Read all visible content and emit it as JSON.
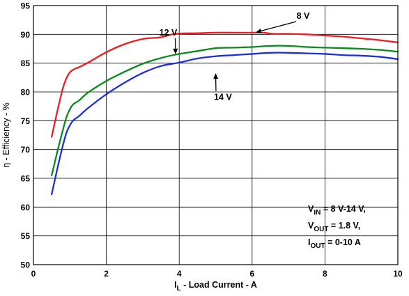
{
  "chart_data": {
    "type": "line",
    "xlabel_main": "I",
    "xlabel_sub": "L",
    "xlabel_rest": " - Load Current - A",
    "ylabel": "η - Efficiency - %",
    "xlim": [
      0,
      10
    ],
    "ylim": [
      50,
      95
    ],
    "xticks": [
      "0",
      "2",
      "4",
      "6",
      "8",
      "10"
    ],
    "yticks": [
      "50",
      "55",
      "60",
      "65",
      "70",
      "75",
      "80",
      "85",
      "90",
      "95"
    ],
    "grid": true,
    "series": [
      {
        "name": "8 V",
        "color": "#ee1c25",
        "x": [
          0.5,
          0.65,
          0.8,
          0.9,
          1.0,
          1.1,
          1.25,
          1.5,
          2.0,
          2.5,
          3.0,
          3.5,
          3.9,
          4.5,
          5.0,
          5.5,
          6.0,
          6.3,
          6.6,
          7.0,
          7.5,
          8.0,
          8.5,
          9.0,
          9.5,
          10.0
        ],
        "y": [
          72.2,
          76.5,
          80.5,
          82.3,
          83.4,
          83.9,
          84.3,
          85.1,
          86.9,
          88.3,
          89.2,
          89.5,
          90.1,
          90.2,
          90.3,
          90.3,
          90.3,
          90.3,
          90.1,
          90.1,
          90.0,
          89.8,
          89.6,
          89.3,
          89.0,
          88.6
        ]
      },
      {
        "name": "12 V",
        "color": "#0a8a1c",
        "x": [
          0.5,
          0.65,
          0.8,
          0.9,
          1.0,
          1.1,
          1.25,
          1.5,
          2.0,
          2.5,
          3.0,
          3.5,
          4.0,
          4.5,
          5.0,
          5.5,
          6.0,
          6.5,
          7.0,
          7.5,
          8.0,
          8.5,
          9.0,
          9.5,
          10.0
        ],
        "y": [
          65.5,
          69.5,
          73.2,
          75.5,
          77.0,
          77.9,
          78.5,
          79.9,
          81.9,
          83.5,
          84.9,
          85.9,
          86.6,
          87.1,
          87.6,
          87.7,
          87.8,
          88.0,
          88.0,
          87.8,
          87.7,
          87.6,
          87.5,
          87.3,
          87.0
        ]
      },
      {
        "name": "14 V",
        "color": "#1f2fd8",
        "x": [
          0.5,
          0.65,
          0.8,
          0.9,
          1.0,
          1.1,
          1.25,
          1.5,
          2.0,
          2.5,
          3.0,
          3.5,
          4.0,
          4.5,
          5.0,
          5.5,
          6.0,
          6.5,
          7.0,
          7.5,
          8.0,
          8.5,
          9.0,
          9.5,
          10.0
        ],
        "y": [
          62.2,
          66.5,
          70.5,
          72.8,
          74.2,
          75.1,
          75.8,
          77.2,
          79.6,
          81.6,
          83.3,
          84.5,
          85.1,
          85.8,
          86.2,
          86.4,
          86.6,
          86.8,
          86.8,
          86.7,
          86.6,
          86.4,
          86.3,
          86.1,
          85.7
        ]
      }
    ],
    "series_labels": [
      {
        "text": "8 V",
        "label_x": 7.4,
        "label_y": 92.7,
        "tip_x": 6.1,
        "tip_y": 90.35
      },
      {
        "text": "12 V",
        "label_x": 3.7,
        "label_y": 89.8,
        "tip_x": 3.9,
        "tip_y": 86.55
      },
      {
        "text": "14 V",
        "label_x": 5.2,
        "label_y": 78.6,
        "tip_x": 5.0,
        "tip_y": 83.25
      }
    ],
    "conditions": {
      "vin_main": "V",
      "vin_sub": "IN",
      "vin_rest": " = 8 V-14 V,",
      "vout_main": "V",
      "vout_sub": "OUT",
      "vout_rest": " = 1.8 V,",
      "iout_main": "I",
      "iout_sub": "OUT",
      "iout_rest": " = 0-10 A"
    }
  }
}
